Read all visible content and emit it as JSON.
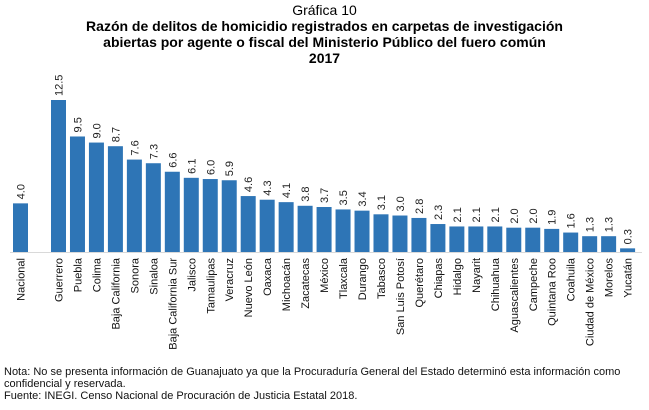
{
  "header": {
    "kicker": "Gráfica 10",
    "title_line1": "Razón de delitos de homicidio registrados en carpetas de investigación",
    "title_line2": "abiertas por agente o fiscal del Ministerio Público del fuero común",
    "title_line3": "2017"
  },
  "chart_data": {
    "type": "bar",
    "title": "Razón de delitos de homicidio registrados en carpetas de investigación abiertas por agente o fiscal del Ministerio Público del fuero común 2017",
    "xlabel": "",
    "ylabel": "",
    "ylim": [
      0,
      12.5
    ],
    "grid": false,
    "legend": "none",
    "bar_color": "#2E75B6",
    "categories": [
      "Nacional",
      "Guerrero",
      "Puebla",
      "Colima",
      "Baja California",
      "Sonora",
      "Sinaloa",
      "Baja California Sur",
      "Jalisco",
      "Tamaulipas",
      "Veracruz",
      "Nuevo León",
      "Oaxaca",
      "Michoacán",
      "Zacatecas",
      "México",
      "Tlaxcala",
      "Durango",
      "Tabasco",
      "San Luis Potosí",
      "Querétaro",
      "Chiapas",
      "Hidalgo",
      "Nayarit",
      "Chihuahua",
      "Aguascalientes",
      "Campeche",
      "Quintana Roo",
      "Coahuila",
      "Ciudad de México",
      "Morelos",
      "Yucatán"
    ],
    "values": [
      4.0,
      12.5,
      9.5,
      9.0,
      8.7,
      7.6,
      7.3,
      6.6,
      6.1,
      6.0,
      5.9,
      4.6,
      4.3,
      4.1,
      3.8,
      3.7,
      3.5,
      3.4,
      3.1,
      3.0,
      2.8,
      2.3,
      2.1,
      2.1,
      2.1,
      2.0,
      2.0,
      1.9,
      1.6,
      1.3,
      1.3,
      0.3
    ],
    "value_labels": [
      "4.0",
      "12.5",
      "9.5",
      "9.0",
      "8.7",
      "7.6",
      "7.3",
      "6.6",
      "6.1",
      "6.0",
      "5.9",
      "4.6",
      "4.3",
      "4.1",
      "3.8",
      "3.7",
      "3.5",
      "3.4",
      "3.1",
      "3.0",
      "2.8",
      "2.3",
      "2.1",
      "2.1",
      "2.1",
      "2.0",
      "2.0",
      "1.9",
      "1.6",
      "1.3",
      "1.3",
      "0.3"
    ]
  },
  "notes": {
    "nota": "Nota: No se presenta información de Guanajuato ya que la Procuraduría General del Estado determinó esta información como confidencial y reservada.",
    "fuente": "Fuente: INEGI. Censo Nacional de Procuración de Justicia Estatal 2018."
  }
}
